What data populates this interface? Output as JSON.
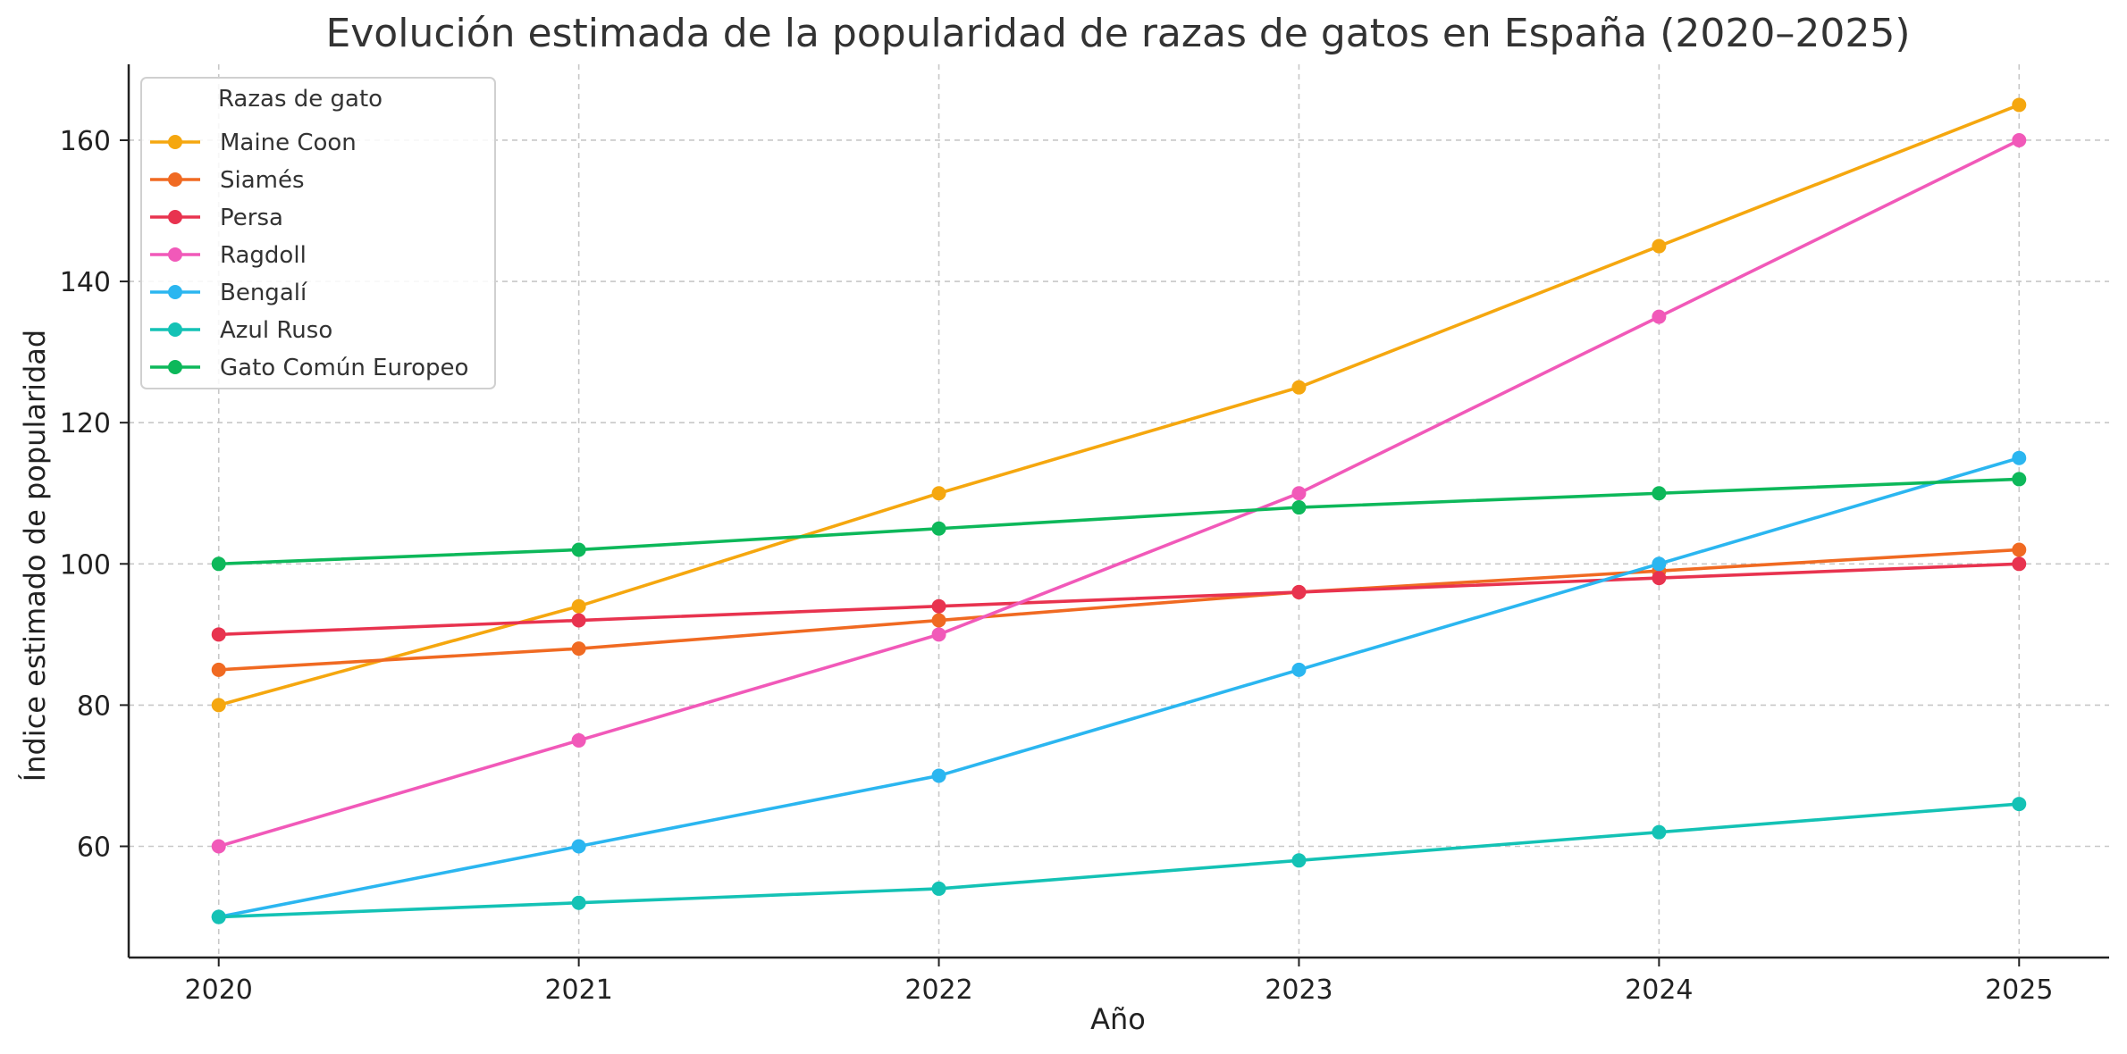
{
  "chart_data": {
    "type": "line",
    "title": "Evolución estimada de la popularidad de razas de gatos en España (2020–2025)",
    "xlabel": "Año",
    "ylabel": "Índice estimado de popularidad",
    "x": [
      2020,
      2021,
      2022,
      2023,
      2024,
      2025
    ],
    "x_tick_labels": [
      "2020",
      "2021",
      "2022",
      "2023",
      "2024",
      "2025"
    ],
    "y_ticks": [
      60,
      80,
      100,
      120,
      140,
      160
    ],
    "y_tick_labels": [
      "60",
      "80",
      "100",
      "120",
      "140",
      "160"
    ],
    "xlim": [
      2019.75,
      2025.25
    ],
    "ylim": [
      44.25,
      170.75
    ],
    "grid": true,
    "legend": {
      "title": "Razas de gato",
      "placement": "top-left"
    },
    "series": [
      {
        "name": "Maine Coon",
        "color": "#F5A70F",
        "values": [
          80,
          94,
          110,
          125,
          145,
          165
        ]
      },
      {
        "name": "Siamés",
        "color": "#F06A22",
        "values": [
          85,
          88,
          92,
          96,
          99,
          102
        ]
      },
      {
        "name": "Persa",
        "color": "#E8334F",
        "values": [
          90,
          92,
          94,
          96,
          98,
          100
        ]
      },
      {
        "name": "Ragdoll",
        "color": "#F159B9",
        "values": [
          60,
          75,
          90,
          110,
          135,
          160
        ]
      },
      {
        "name": "Bengalí",
        "color": "#2BB6F0",
        "values": [
          50,
          60,
          70,
          85,
          100,
          115
        ]
      },
      {
        "name": "Azul Ruso",
        "color": "#14C2B5",
        "values": [
          50,
          52,
          54,
          58,
          62,
          66
        ]
      },
      {
        "name": "Gato Común Europeo",
        "color": "#0DB85A",
        "values": [
          100,
          102,
          105,
          108,
          110,
          112
        ]
      }
    ]
  }
}
